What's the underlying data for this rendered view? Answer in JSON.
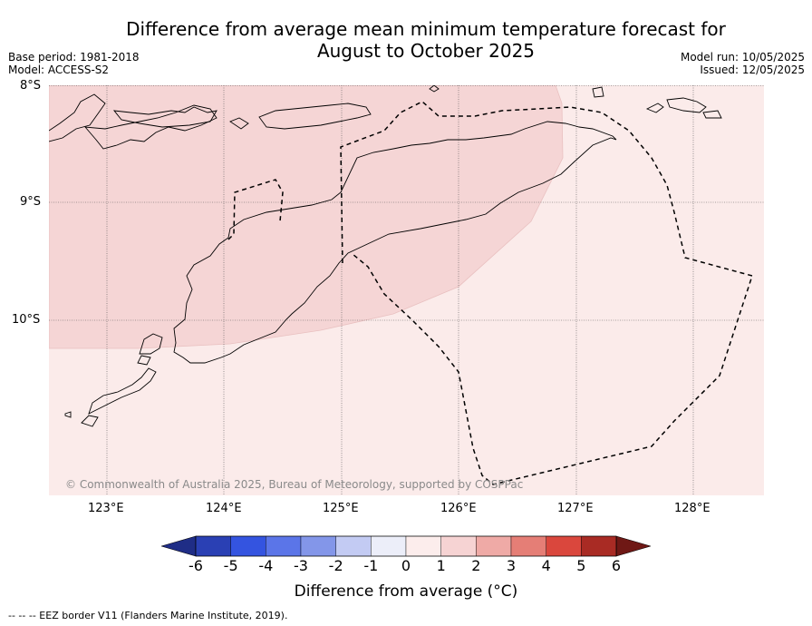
{
  "title_line1": "Difference from average mean minimum temperature forecast for",
  "title_line2": "August to October 2025",
  "meta": {
    "base_period": "Base period: 1981-2018",
    "model": "Model: ACCESS-S2",
    "model_run": "Model run: 10/05/2025",
    "issued": "Issued: 12/05/2025"
  },
  "map": {
    "lat_labels": [
      "8°S",
      "9°S",
      "10°S"
    ],
    "lon_labels": [
      "123°E",
      "124°E",
      "125°E",
      "126°E",
      "127°E",
      "128°E"
    ],
    "copyright": "© Commonwealth of Australia 2025, Bureau of Meteorology, supported by COSPPac",
    "colors": {
      "bin_1_2": "#f5d5d5",
      "bin_0_1": "#fbebea",
      "ocean_edge": "#e8bcbc"
    }
  },
  "colorbar": {
    "ticks": [
      "-6",
      "-5",
      "-4",
      "-3",
      "-2",
      "-1",
      "0",
      "1",
      "2",
      "3",
      "4",
      "5",
      "6"
    ],
    "colors": [
      "#1f2d86",
      "#2a40b4",
      "#3454e0",
      "#5b75e8",
      "#8396e9",
      "#c3cbf3",
      "#eceef9",
      "#fcedec",
      "#f6d3d3",
      "#efaaa6",
      "#e57e76",
      "#da473d",
      "#a92b24",
      "#6f1815"
    ],
    "label": "Difference from average (°C)"
  },
  "footer": "-- -- -- EEZ border V11 (Flanders Marine Institute, 2019)."
}
